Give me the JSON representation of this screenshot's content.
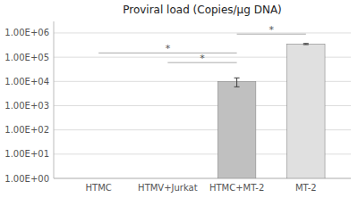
{
  "chart_data": {
    "type": "bar",
    "title": "Proviral load (Copies/μg DNA)",
    "categories": [
      "HTMC",
      "HTMV+Jurkat",
      "HTMC+MT-2",
      "MT-2"
    ],
    "values": [
      1,
      1,
      10000,
      350000
    ],
    "errors": [
      0,
      0,
      4000,
      18000
    ],
    "colors": [
      "#d8d8d8",
      "#d8d8d8",
      "#c0c0c0",
      "#e0e0e0"
    ],
    "log": "y",
    "ylim": [
      1.0,
      3000000.0
    ],
    "yticks": [
      {
        "value": 1,
        "label": "1.00E+00"
      },
      {
        "value": 10,
        "label": "1.00E+01"
      },
      {
        "value": 100,
        "label": "1.00E+02"
      },
      {
        "value": 1000,
        "label": "1.00E+03"
      },
      {
        "value": 10000,
        "label": "1.00E+04"
      },
      {
        "value": 100000,
        "label": "1.00E+05"
      },
      {
        "value": 1000000,
        "label": "1.00E+06"
      }
    ],
    "grid": true,
    "annotations": [
      {
        "from": "HTMC",
        "to": "HTMC+MT-2",
        "y": 150000,
        "label": "*"
      },
      {
        "from": "HTMV+Jurkat",
        "to": "HTMC+MT-2",
        "y": 60000,
        "label": "*"
      },
      {
        "from": "HTMC+MT-2",
        "to": "MT-2",
        "y": 900000,
        "label": "*"
      }
    ]
  }
}
